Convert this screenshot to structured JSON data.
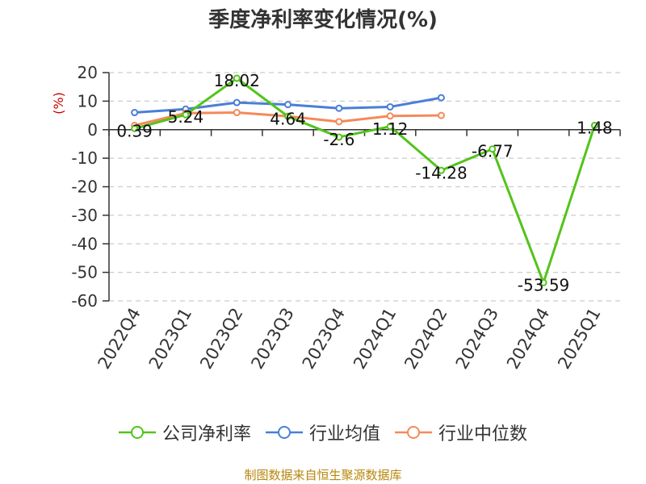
{
  "chart_data": {
    "type": "line",
    "title": "季度净利率变化情况(%)",
    "ylabel": "(%)",
    "xlabel": "",
    "categories": [
      "2022Q4",
      "2023Q1",
      "2023Q2",
      "2023Q3",
      "2023Q4",
      "2024Q1",
      "2024Q2",
      "2024Q3",
      "2024Q4",
      "2025Q1"
    ],
    "ylim": [
      -60,
      20
    ],
    "yticks": [
      "20",
      "10",
      "0",
      "-10",
      "-20",
      "-30",
      "-40",
      "-50",
      "-60"
    ],
    "grid": true,
    "legend_position": "bottom",
    "series": [
      {
        "name": "公司净利率",
        "color": "#52c41a",
        "values": [
          0.39,
          5.24,
          18.02,
          4.64,
          -2.6,
          1.12,
          -14.28,
          -6.77,
          -53.59,
          1.48
        ],
        "labels": [
          "0.39",
          "5.24",
          "18.02",
          "4.64",
          "-2.6",
          "1.12",
          "-14.28",
          "-6.77",
          "-53.59",
          "1.48"
        ]
      },
      {
        "name": "行业均值",
        "color": "#4a7fd8",
        "values": [
          6.0,
          7.2,
          9.5,
          8.8,
          7.5,
          8.0,
          11.2,
          null,
          null,
          null
        ]
      },
      {
        "name": "行业中位数",
        "color": "#f5895a",
        "values": [
          1.5,
          5.8,
          6.0,
          4.7,
          2.8,
          4.8,
          5.0,
          null,
          null,
          null
        ]
      }
    ]
  },
  "footer": {
    "source": "制图数据来自恒生聚源数据库"
  }
}
